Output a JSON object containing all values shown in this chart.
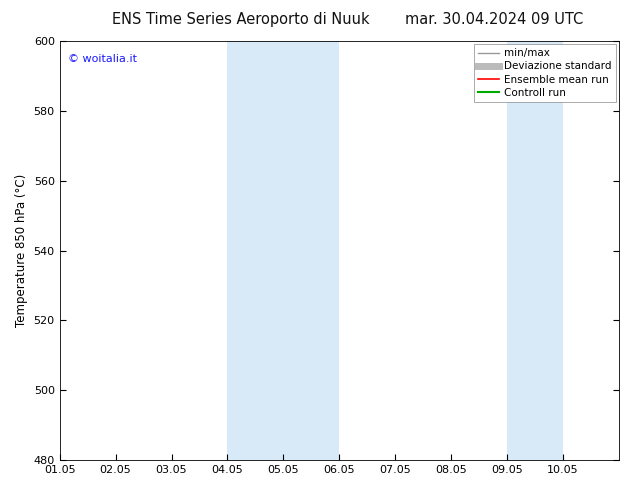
{
  "title_left": "ENS Time Series Aeroporto di Nuuk",
  "title_right": "mar. 30.04.2024 09 UTC",
  "ylabel": "Temperature 850 hPa (°C)",
  "ylim": [
    480,
    600
  ],
  "yticks": [
    480,
    500,
    520,
    540,
    560,
    580,
    600
  ],
  "xtick_labels": [
    "01.05",
    "02.05",
    "03.05",
    "04.05",
    "05.05",
    "06.05",
    "07.05",
    "08.05",
    "09.05",
    "10.05"
  ],
  "shaded_regions": [
    {
      "start": "2024-05-04",
      "end": "2024-05-06",
      "color": "#d8eaf7"
    },
    {
      "start": "2024-05-09",
      "end": "2024-05-10",
      "color": "#d8eaf7"
    }
  ],
  "watermark": "© woitalia.it",
  "watermark_color": "#1a1aff",
  "legend_entries": [
    {
      "label": "min/max",
      "color": "#999999",
      "lw": 1.0
    },
    {
      "label": "Deviazione standard",
      "color": "#bbbbbb",
      "lw": 5
    },
    {
      "label": "Ensemble mean run",
      "color": "#ff0000",
      "lw": 1.2
    },
    {
      "label": "Controll run",
      "color": "#00aa00",
      "lw": 1.5
    }
  ],
  "background_color": "#ffffff",
  "title_fontsize": 10.5,
  "ylabel_fontsize": 8.5,
  "tick_fontsize": 8,
  "watermark_fontsize": 8,
  "legend_fontsize": 7.5
}
